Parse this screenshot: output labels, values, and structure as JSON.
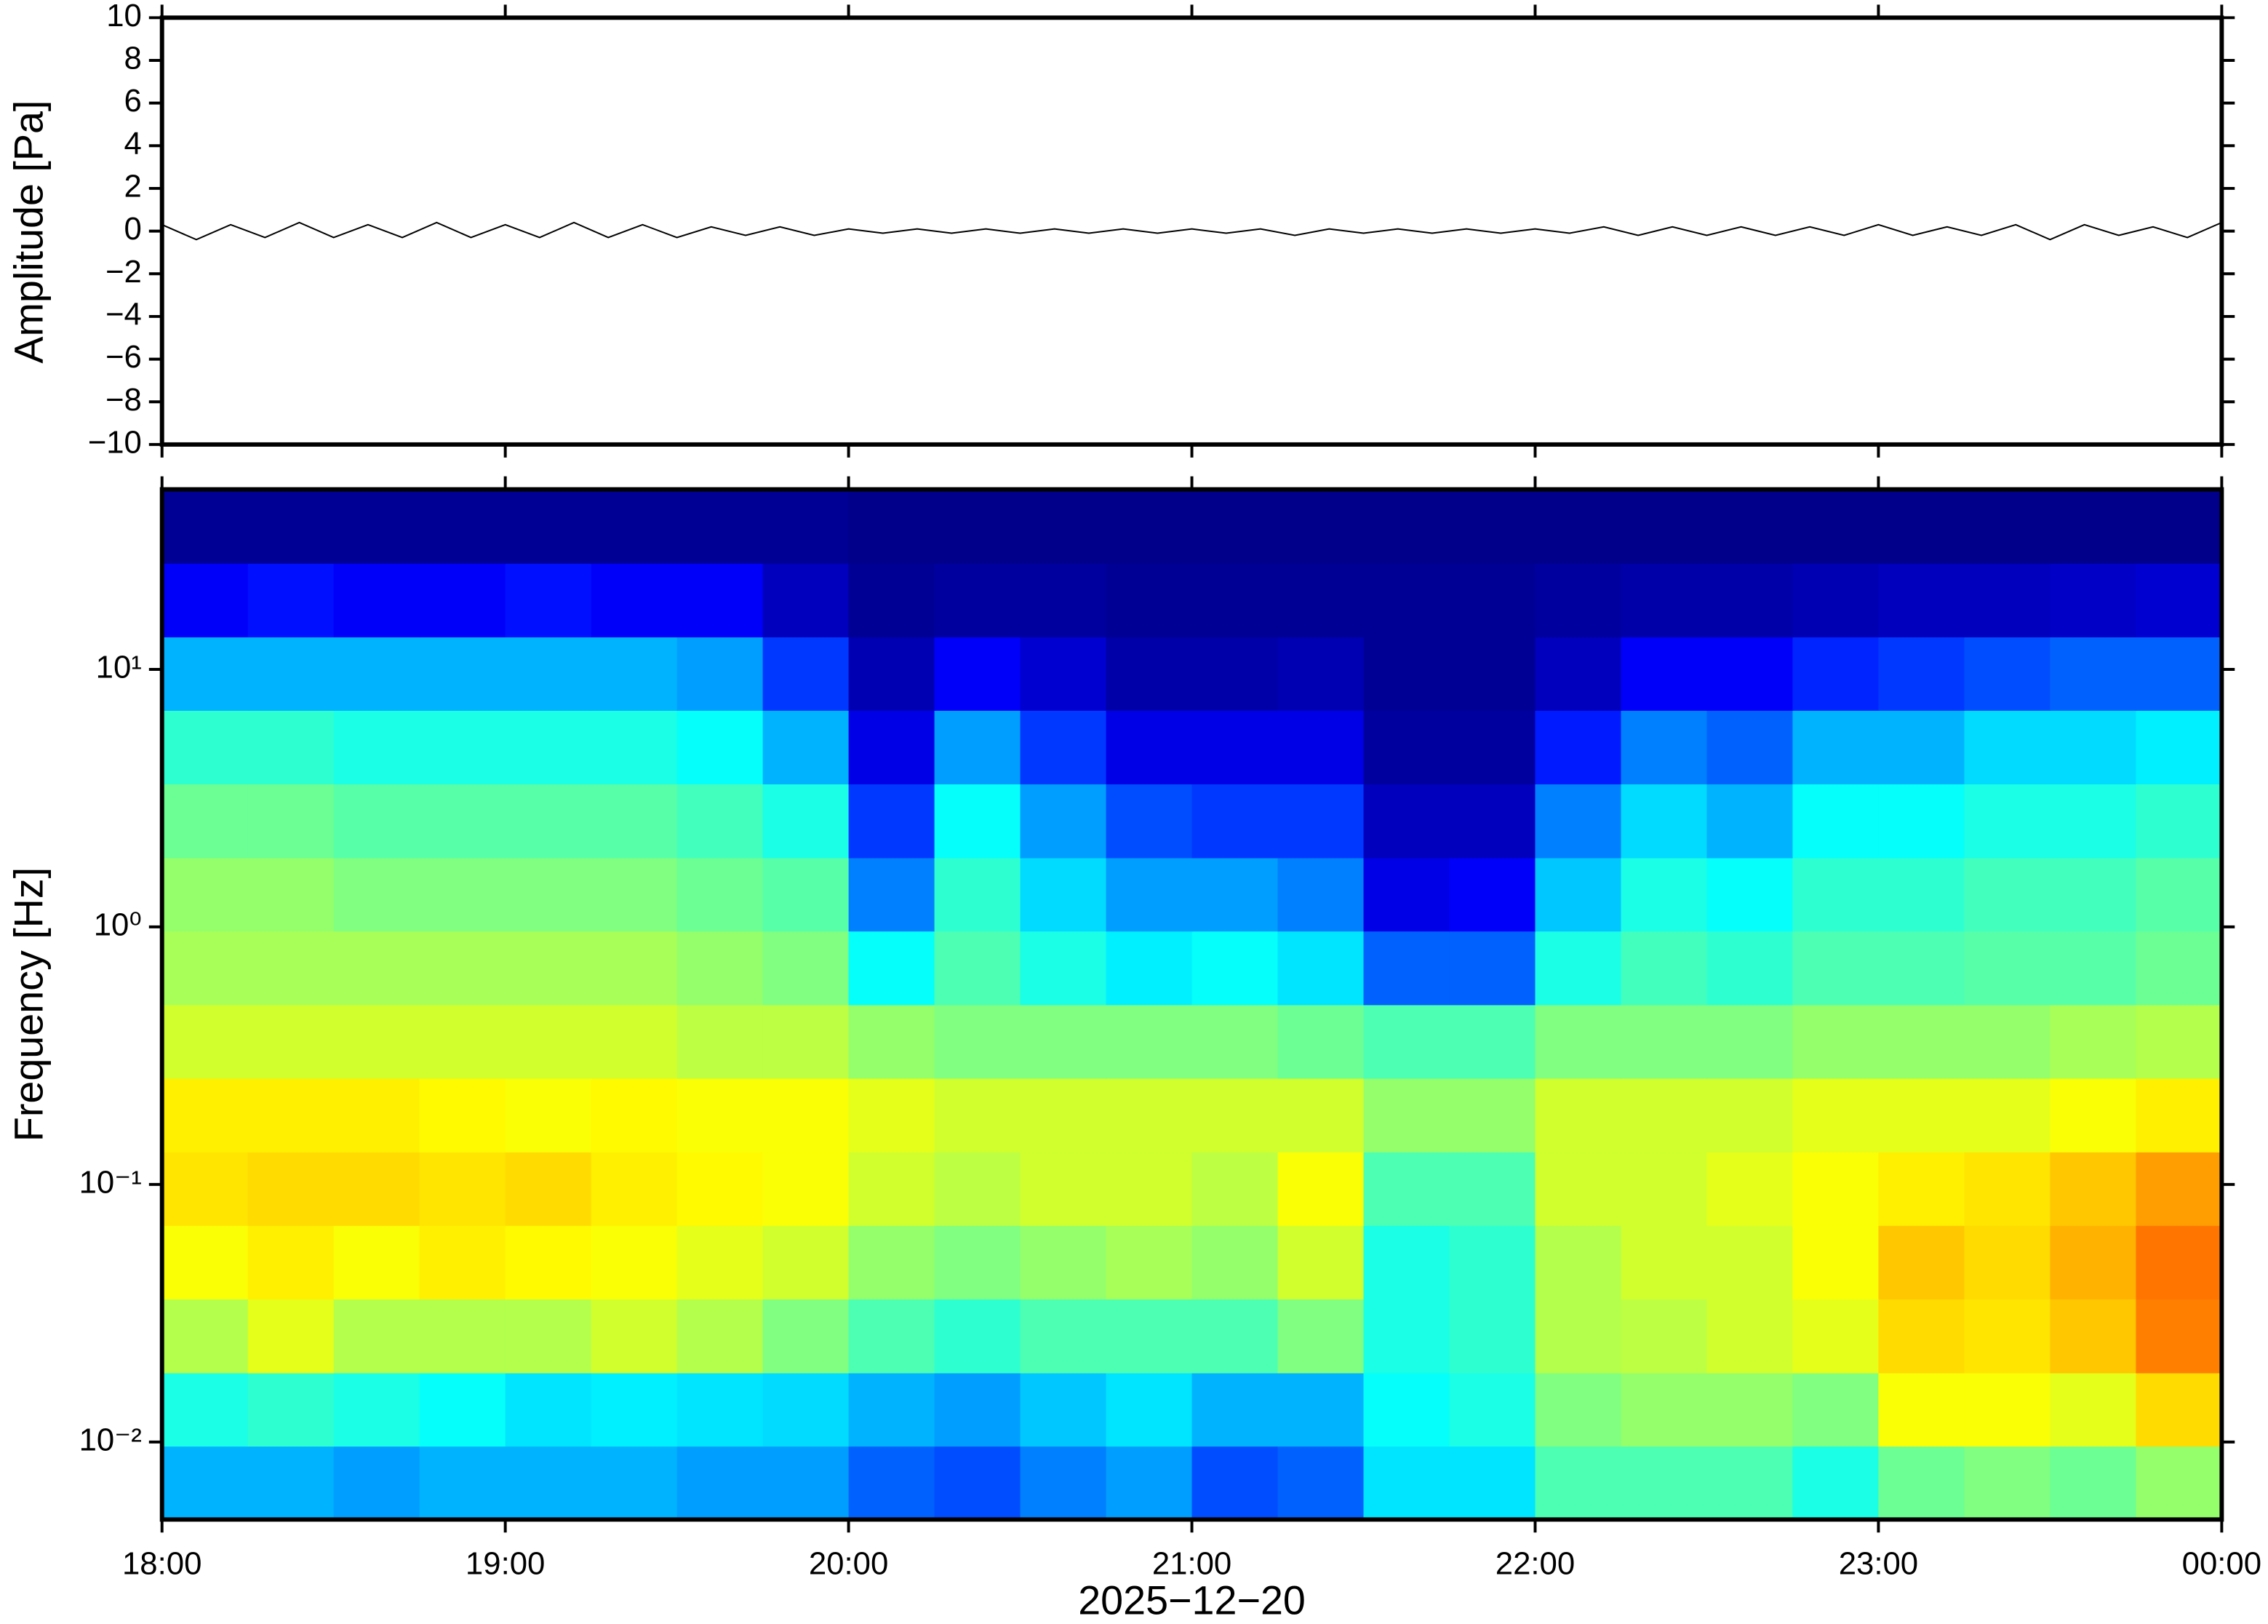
{
  "chart_data": [
    {
      "type": "line",
      "ylabel": "Amplitude [Pa]",
      "color": "#000000",
      "xlim": [
        18,
        24
      ],
      "ylim": [
        -10,
        10
      ],
      "yticks": [
        {
          "value": -10,
          "label": "−10"
        },
        {
          "value": -8,
          "label": "−8"
        },
        {
          "value": -6,
          "label": "−6"
        },
        {
          "value": -4,
          "label": "−4"
        },
        {
          "value": -2,
          "label": "−2"
        },
        0,
        2,
        4,
        6,
        8,
        10
      ],
      "x": [
        18,
        18.1,
        18.2,
        18.3,
        18.4,
        18.5,
        18.6,
        18.7,
        18.8,
        18.9,
        19,
        19.1,
        19.2,
        19.3,
        19.4,
        19.5,
        19.6,
        19.7,
        19.8,
        19.9,
        20,
        20.1,
        20.2,
        20.3,
        20.4,
        20.5,
        20.6,
        20.7,
        20.8,
        20.9,
        21,
        21.1,
        21.2,
        21.3,
        21.4,
        21.5,
        21.6,
        21.7,
        21.8,
        21.9,
        22,
        22.1,
        22.2,
        22.3,
        22.4,
        22.5,
        22.6,
        22.7,
        22.8,
        22.9,
        23,
        23.1,
        23.2,
        23.3,
        23.4,
        23.5,
        23.6,
        23.7,
        23.8,
        23.9,
        24
      ],
      "values": [
        0.3,
        -0.4,
        0.3,
        -0.3,
        0.4,
        -0.3,
        0.3,
        -0.3,
        0.4,
        -0.3,
        0.3,
        -0.3,
        0.4,
        -0.3,
        0.3,
        -0.3,
        0.2,
        -0.2,
        0.2,
        -0.2,
        0.1,
        -0.1,
        0.1,
        -0.1,
        0.1,
        -0.1,
        0.1,
        -0.1,
        0.1,
        -0.1,
        0.1,
        -0.1,
        0.1,
        -0.2,
        0.1,
        -0.1,
        0.1,
        -0.1,
        0.1,
        -0.1,
        0.1,
        -0.1,
        0.2,
        -0.2,
        0.2,
        -0.2,
        0.2,
        -0.2,
        0.2,
        -0.2,
        0.3,
        -0.2,
        0.2,
        -0.2,
        0.3,
        -0.4,
        0.3,
        -0.2,
        0.2,
        -0.3,
        0.4
      ]
    },
    {
      "type": "heatmap",
      "ylabel": "Frequency [Hz]",
      "xlabel": "2025−12−20",
      "ylog": true,
      "colormap": "jet",
      "color_range": [
        0,
        100
      ],
      "xlim": [
        18,
        24
      ],
      "ylim": [
        0.005,
        50
      ],
      "xticks": [
        {
          "value": 18,
          "label": "18:00"
        },
        {
          "value": 19,
          "label": "19:00"
        },
        {
          "value": 20,
          "label": "20:00"
        },
        {
          "value": 21,
          "label": "21:00"
        },
        {
          "value": 22,
          "label": "22:00"
        },
        {
          "value": 23,
          "label": "23:00"
        },
        {
          "value": 24,
          "label": "00:00"
        }
      ],
      "yticks": [
        {
          "value": 0.01,
          "label": "10⁻²"
        },
        {
          "value": 0.1,
          "label": "10⁻¹"
        },
        {
          "value": 1,
          "label": "10⁰"
        },
        {
          "value": 10,
          "label": "10¹"
        }
      ],
      "x_bins": [
        18,
        18.25,
        18.5,
        18.75,
        19,
        19.25,
        19.5,
        19.75,
        20,
        20.25,
        20.5,
        20.75,
        21,
        21.25,
        21.5,
        21.75,
        22,
        22.25,
        22.5,
        22.75,
        23,
        23.25,
        23.5,
        23.75,
        24
      ],
      "y_bins": [
        0.005,
        0.00966,
        0.0186,
        0.036,
        0.0695,
        0.134,
        0.259,
        0.5,
        0.966,
        1.86,
        3.6,
        6.95,
        13.4,
        25.9,
        50
      ],
      "values": [
        [
          30,
          30,
          28,
          30,
          30,
          30,
          28,
          28,
          22,
          20,
          25,
          28,
          20,
          22,
          35,
          35,
          45,
          45,
          45,
          40,
          48,
          50,
          48,
          52
        ],
        [
          40,
          42,
          40,
          38,
          35,
          36,
          35,
          34,
          30,
          28,
          32,
          35,
          30,
          30,
          38,
          40,
          50,
          52,
          52,
          50,
          62,
          62,
          60,
          66
        ],
        [
          55,
          60,
          55,
          55,
          55,
          58,
          55,
          50,
          45,
          42,
          45,
          45,
          45,
          50,
          40,
          42,
          55,
          56,
          58,
          60,
          66,
          65,
          68,
          75
        ],
        [
          62,
          64,
          62,
          64,
          63,
          62,
          60,
          58,
          52,
          50,
          52,
          54,
          52,
          58,
          40,
          42,
          55,
          58,
          58,
          62,
          68,
          66,
          70,
          76
        ],
        [
          65,
          66,
          66,
          65,
          66,
          64,
          63,
          62,
          58,
          56,
          58,
          58,
          56,
          62,
          45,
          45,
          58,
          58,
          60,
          62,
          64,
          65,
          68,
          72
        ],
        [
          64,
          64,
          64,
          63,
          62,
          63,
          62,
          62,
          60,
          58,
          58,
          58,
          58,
          58,
          52,
          52,
          58,
          58,
          58,
          60,
          60,
          60,
          62,
          64
        ],
        [
          58,
          58,
          58,
          58,
          58,
          58,
          56,
          56,
          52,
          50,
          50,
          50,
          50,
          48,
          45,
          45,
          50,
          50,
          50,
          52,
          52,
          52,
          54,
          55
        ],
        [
          54,
          54,
          54,
          54,
          54,
          54,
          52,
          50,
          38,
          45,
          40,
          36,
          38,
          35,
          22,
          22,
          40,
          44,
          42,
          45,
          45,
          46,
          46,
          48
        ],
        [
          52,
          52,
          50,
          50,
          50,
          50,
          48,
          46,
          25,
          42,
          34,
          28,
          28,
          25,
          10,
          12,
          32,
          40,
          38,
          42,
          42,
          44,
          44,
          46
        ],
        [
          48,
          48,
          46,
          46,
          46,
          46,
          44,
          40,
          18,
          38,
          28,
          20,
          18,
          18,
          6,
          6,
          25,
          34,
          30,
          38,
          38,
          40,
          40,
          42
        ],
        [
          42,
          42,
          40,
          40,
          40,
          40,
          38,
          30,
          10,
          28,
          18,
          10,
          10,
          10,
          3,
          3,
          15,
          25,
          22,
          30,
          30,
          34,
          34,
          36
        ],
        [
          30,
          30,
          30,
          30,
          30,
          30,
          28,
          18,
          5,
          12,
          8,
          4,
          4,
          5,
          2,
          2,
          6,
          12,
          12,
          16,
          18,
          20,
          22,
          22
        ],
        [
          12,
          14,
          12,
          12,
          14,
          12,
          12,
          6,
          2,
          3,
          3,
          2,
          2,
          2,
          2,
          2,
          3,
          4,
          4,
          5,
          6,
          6,
          7,
          8
        ],
        [
          2,
          2,
          2,
          2,
          2,
          2,
          2,
          2,
          1,
          1,
          1,
          1,
          1,
          1,
          1,
          1,
          1,
          1,
          1,
          1,
          1,
          1,
          1,
          1
        ]
      ]
    }
  ]
}
